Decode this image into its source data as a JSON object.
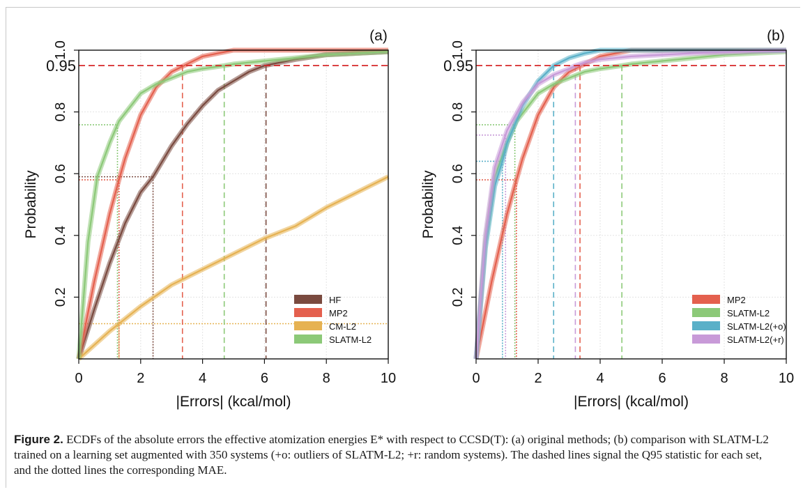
{
  "chart_data": [
    {
      "type": "line",
      "panel": "(a)",
      "xlabel": "|Errors| (kcal/mol)",
      "ylabel": "Probability",
      "xlim": [
        0,
        10
      ],
      "ylim": [
        0,
        1
      ],
      "xticks": [
        "0",
        "2",
        "4",
        "6",
        "8",
        "10"
      ],
      "yticks": [
        "0.2",
        "0.4",
        "0.6",
        "0.8",
        "1.0"
      ],
      "ref_line": {
        "value": 0.95,
        "label": "0.95",
        "color": "#d62728"
      },
      "legend_position": "bottom-right",
      "grid": true,
      "series": [
        {
          "name": "HF",
          "color": "#7a4a3f",
          "x": [
            0,
            0.5,
            1,
            1.5,
            2,
            2.4,
            3,
            3.5,
            4,
            4.5,
            5,
            5.5,
            6,
            6.5,
            7,
            8,
            9,
            10
          ],
          "y": [
            0,
            0.16,
            0.31,
            0.44,
            0.54,
            0.59,
            0.69,
            0.76,
            0.82,
            0.87,
            0.9,
            0.93,
            0.95,
            0.96,
            0.97,
            0.985,
            0.99,
            0.995
          ],
          "q95": 6.05,
          "mae": 2.4
        },
        {
          "name": "MP2",
          "color": "#e4604e",
          "x": [
            0,
            0.5,
            1,
            1.3,
            1.5,
            2,
            2.5,
            3,
            3.4,
            4,
            4.5,
            5,
            10
          ],
          "y": [
            0,
            0.25,
            0.47,
            0.58,
            0.65,
            0.79,
            0.88,
            0.93,
            0.95,
            0.98,
            0.99,
            1.0,
            1.0
          ],
          "q95": 3.35,
          "mae": 1.3
        },
        {
          "name": "CM-L2",
          "color": "#e6b252",
          "x": [
            0,
            1,
            2,
            3,
            4,
            5,
            6,
            7,
            8,
            9,
            10
          ],
          "y": [
            0,
            0.09,
            0.17,
            0.24,
            0.29,
            0.34,
            0.39,
            0.43,
            0.49,
            0.54,
            0.59
          ],
          "q95": null,
          "mae": 1.3
        },
        {
          "name": "SLATM-L2",
          "color": "#8cc978",
          "x": [
            0,
            0.3,
            0.6,
            1,
            1.3,
            2,
            2.5,
            3,
            3.5,
            4,
            4.7,
            5,
            6,
            7,
            8,
            9,
            10
          ],
          "y": [
            0,
            0.38,
            0.59,
            0.7,
            0.77,
            0.86,
            0.89,
            0.91,
            0.93,
            0.94,
            0.95,
            0.955,
            0.965,
            0.975,
            0.985,
            0.99,
            0.995
          ],
          "q95": 4.7,
          "mae": 1.25
        }
      ]
    },
    {
      "type": "line",
      "panel": "(b)",
      "xlabel": "|Errors| (kcal/mol)",
      "ylabel": "Probability",
      "xlim": [
        0,
        10
      ],
      "ylim": [
        0,
        1
      ],
      "xticks": [
        "0",
        "2",
        "4",
        "6",
        "8",
        "10"
      ],
      "yticks": [
        "0.2",
        "0.4",
        "0.6",
        "0.8",
        "1.0"
      ],
      "ref_line": {
        "value": 0.95,
        "label": "0.95",
        "color": "#d62728"
      },
      "legend_position": "bottom-right",
      "grid": true,
      "series": [
        {
          "name": "MP2",
          "color": "#e4604e",
          "x": [
            0,
            0.5,
            1,
            1.3,
            1.5,
            2,
            2.5,
            3,
            3.4,
            4,
            4.5,
            5,
            10
          ],
          "y": [
            0,
            0.25,
            0.47,
            0.58,
            0.65,
            0.79,
            0.88,
            0.93,
            0.95,
            0.98,
            0.99,
            1.0,
            1.0
          ],
          "q95": 3.35,
          "mae": 1.3
        },
        {
          "name": "SLATM-L2",
          "color": "#8cc978",
          "x": [
            0,
            0.3,
            0.6,
            1,
            1.3,
            2,
            2.5,
            3,
            3.5,
            4,
            4.7,
            5,
            6,
            7,
            8,
            9,
            10
          ],
          "y": [
            0,
            0.38,
            0.59,
            0.7,
            0.77,
            0.86,
            0.89,
            0.91,
            0.93,
            0.94,
            0.95,
            0.955,
            0.965,
            0.975,
            0.985,
            0.99,
            0.995
          ],
          "q95": 4.7,
          "mae": 1.25
        },
        {
          "name": "SLATM-L2(+o)",
          "color": "#5ab0c8",
          "x": [
            0,
            0.3,
            0.6,
            0.85,
            1,
            1.5,
            2,
            2.5,
            3,
            3.5,
            4,
            10
          ],
          "y": [
            0,
            0.36,
            0.56,
            0.64,
            0.7,
            0.82,
            0.9,
            0.95,
            0.975,
            0.99,
            1.0,
            1.0
          ],
          "q95": 2.5,
          "mae": 0.85
        },
        {
          "name": "SLATM-L2(+r)",
          "color": "#c89ad8",
          "x": [
            0,
            0.3,
            0.6,
            1,
            1.5,
            2,
            2.5,
            3,
            3.2,
            3.5,
            4,
            5,
            6,
            7,
            8,
            9,
            10
          ],
          "y": [
            0,
            0.4,
            0.62,
            0.74,
            0.83,
            0.89,
            0.92,
            0.94,
            0.95,
            0.96,
            0.97,
            0.98,
            0.985,
            0.99,
            0.993,
            0.996,
            0.998
          ],
          "q95": 3.2,
          "mae": 0.95
        }
      ]
    }
  ],
  "caption": {
    "label": "Figure 2.",
    "text": " ECDFs of the absolute errors the effective atomization energies E* with respect to CCSD(T): (a) original methods; (b) comparison with SLATM-L2 trained on a learning set augmented with 350 systems (+o: outliers of SLATM-L2; +r: random systems). The dashed lines signal the Q95 statistic for each set, and the dotted lines the corresponding MAE."
  }
}
